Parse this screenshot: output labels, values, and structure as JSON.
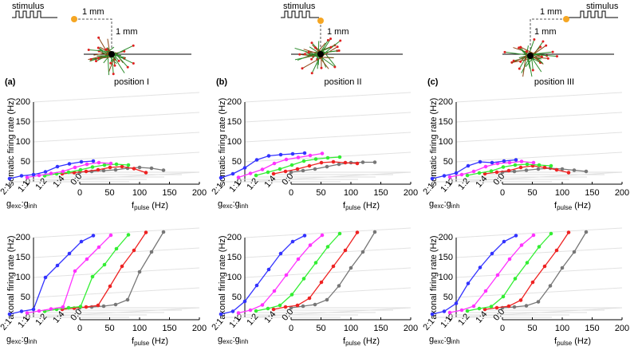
{
  "diagrams": [
    {
      "stimulus": "stimulus",
      "distance_h": "1 mm",
      "distance_v": "1 mm"
    },
    {
      "stimulus": "stimulus",
      "distance_v": "1 mm"
    },
    {
      "stimulus": "stimulus",
      "distance_h": "1 mm",
      "distance_v": "1 mm"
    }
  ],
  "panels": [
    {
      "label": "(a)",
      "title": "position I"
    },
    {
      "label": "(b)",
      "title": "position II"
    },
    {
      "label": "(c)",
      "title": "position III"
    }
  ],
  "chart_data": [
    {
      "type": "line",
      "ylabel": "somatic firing rate (Hz)",
      "xlabel": [
        "f",
        "pulse",
        " (Hz)"
      ],
      "zlabel": [
        "g",
        "exc",
        ":g",
        "inh"
      ],
      "zcategories": [
        "2:1",
        "1:1",
        "1:2",
        "1:4",
        "0:0"
      ],
      "x": [
        0,
        20,
        40,
        60,
        80,
        100,
        120,
        140
      ],
      "xlim": [
        0,
        200
      ],
      "xticks": [
        0,
        50,
        100,
        150,
        200
      ],
      "ylim": [
        0,
        200
      ],
      "yticks": [
        0,
        50,
        100,
        150,
        200
      ],
      "series": [
        {
          "color": "#3333ff",
          "values": [
            8,
            15,
            18,
            25,
            38,
            45,
            50,
            52
          ]
        },
        {
          "color": "#ff33ff",
          "values": [
            5,
            10,
            15,
            20,
            30,
            38,
            42,
            40
          ]
        },
        {
          "color": "#33ee33",
          "values": [
            3,
            8,
            12,
            18,
            25,
            30,
            32,
            30
          ]
        },
        {
          "color": "#ee2222",
          "values": [
            2,
            5,
            8,
            12,
            18,
            20,
            15,
            5
          ]
        },
        {
          "color": "#777777",
          "values": [
            0,
            2,
            4,
            6,
            10,
            12,
            10,
            5
          ]
        }
      ]
    },
    {
      "type": "line",
      "ylabel": "somatic firing rate (Hz)",
      "xlabel": [
        "f",
        "pulse",
        " (Hz)"
      ],
      "zlabel": [
        "g",
        "exc",
        ":g",
        "inh"
      ],
      "zcategories": [
        "2:1",
        "1:1",
        "1:2",
        "1:4",
        "0:0"
      ],
      "x": [
        0,
        20,
        40,
        60,
        80,
        100,
        120,
        140
      ],
      "xlim": [
        0,
        200
      ],
      "xticks": [
        0,
        50,
        100,
        150,
        200
      ],
      "ylim": [
        0,
        200
      ],
      "yticks": [
        0,
        50,
        100,
        150,
        200
      ],
      "series": [
        {
          "color": "#3333ff",
          "values": [
            10,
            20,
            35,
            55,
            65,
            68,
            70,
            72
          ]
        },
        {
          "color": "#ff33ff",
          "values": [
            5,
            15,
            25,
            40,
            50,
            55,
            60,
            65
          ]
        },
        {
          "color": "#33ee33",
          "values": [
            4,
            12,
            20,
            30,
            40,
            45,
            48,
            50
          ]
        },
        {
          "color": "#ee2222",
          "values": [
            2,
            8,
            14,
            22,
            30,
            32,
            30,
            28
          ]
        },
        {
          "color": "#777777",
          "values": [
            0,
            4,
            8,
            14,
            20,
            24,
            25,
            25
          ]
        }
      ]
    },
    {
      "type": "line",
      "ylabel": "somatic firing rate (Hz)",
      "xlabel": [
        "f",
        "pulse",
        " (Hz)"
      ],
      "zlabel": [
        "g",
        "exc",
        ":g",
        "inh"
      ],
      "zcategories": [
        "2:1",
        "1:1",
        "1:2",
        "1:4",
        "0:0"
      ],
      "x": [
        0,
        20,
        40,
        60,
        80,
        100,
        120,
        140
      ],
      "xlim": [
        0,
        200
      ],
      "xticks": [
        0,
        50,
        100,
        150,
        200
      ],
      "ylim": [
        0,
        200
      ],
      "yticks": [
        0,
        50,
        100,
        150,
        200
      ],
      "series": [
        {
          "color": "#3333ff",
          "values": [
            8,
            15,
            22,
            40,
            50,
            48,
            52,
            55
          ]
        },
        {
          "color": "#ff33ff",
          "values": [
            6,
            12,
            20,
            32,
            40,
            42,
            45,
            42
          ]
        },
        {
          "color": "#33ee33",
          "values": [
            4,
            10,
            15,
            25,
            30,
            32,
            30,
            28
          ]
        },
        {
          "color": "#ee2222",
          "values": [
            2,
            6,
            10,
            18,
            22,
            18,
            12,
            5
          ]
        },
        {
          "color": "#777777",
          "values": [
            0,
            2,
            5,
            8,
            10,
            8,
            5,
            2
          ]
        }
      ]
    },
    {
      "type": "line",
      "ylabel": "axonal firing rate (Hz)",
      "xlabel": [
        "f",
        "pulse",
        " (Hz)"
      ],
      "zlabel": [
        "g",
        "exc",
        ":g",
        "inh"
      ],
      "zcategories": [
        "2:1",
        "1:1",
        "1:2",
        "1:4",
        "0:0"
      ],
      "x": [
        0,
        20,
        40,
        60,
        80,
        100,
        120,
        140
      ],
      "xlim": [
        0,
        200
      ],
      "xticks": [
        0,
        50,
        100,
        150,
        200
      ],
      "ylim": [
        0,
        200
      ],
      "yticks": [
        0,
        50,
        100,
        150,
        200
      ],
      "series": [
        {
          "color": "#3333ff",
          "values": [
            8,
            15,
            20,
            100,
            130,
            160,
            190,
            205
          ]
        },
        {
          "color": "#ff33ff",
          "values": [
            5,
            10,
            15,
            20,
            110,
            140,
            170,
            200
          ]
        },
        {
          "color": "#33ee33",
          "values": [
            3,
            8,
            12,
            15,
            90,
            120,
            160,
            195
          ]
        },
        {
          "color": "#ee2222",
          "values": [
            2,
            5,
            8,
            12,
            60,
            110,
            150,
            195
          ]
        },
        {
          "color": "#777777",
          "values": [
            0,
            2,
            4,
            8,
            20,
            90,
            140,
            190
          ]
        }
      ]
    },
    {
      "type": "line",
      "ylabel": "axonal firing rate (Hz)",
      "xlabel": [
        "f",
        "pulse",
        " (Hz)"
      ],
      "zlabel": [
        "g",
        "exc",
        ":g",
        "inh"
      ],
      "zcategories": [
        "2:1",
        "1:1",
        "1:2",
        "1:4",
        "0:0"
      ],
      "x": [
        0,
        20,
        40,
        60,
        80,
        100,
        120,
        140
      ],
      "xlim": [
        0,
        200
      ],
      "xticks": [
        0,
        50,
        100,
        150,
        200
      ],
      "ylim": [
        0,
        200
      ],
      "yticks": [
        0,
        50,
        100,
        150,
        200
      ],
      "series": [
        {
          "color": "#3333ff",
          "values": [
            8,
            15,
            40,
            80,
            120,
            160,
            190,
            205
          ]
        },
        {
          "color": "#ff33ff",
          "values": [
            5,
            12,
            25,
            60,
            100,
            140,
            175,
            200
          ]
        },
        {
          "color": "#33ee33",
          "values": [
            4,
            10,
            18,
            45,
            85,
            125,
            165,
            198
          ]
        },
        {
          "color": "#ee2222",
          "values": [
            2,
            8,
            12,
            30,
            70,
            110,
            150,
            195
          ]
        },
        {
          "color": "#777777",
          "values": [
            0,
            4,
            8,
            20,
            55,
            100,
            140,
            190
          ]
        }
      ]
    },
    {
      "type": "line",
      "ylabel": "axonal firing rate (Hz)",
      "xlabel": [
        "f",
        "pulse",
        " (Hz)"
      ],
      "zlabel": [
        "g",
        "exc",
        ":g",
        "inh"
      ],
      "zcategories": [
        "2:1",
        "1:1",
        "1:2",
        "1:4",
        "0:0"
      ],
      "x": [
        0,
        20,
        40,
        60,
        80,
        100,
        120,
        140
      ],
      "xlim": [
        0,
        200
      ],
      "xticks": [
        0,
        50,
        100,
        150,
        200
      ],
      "ylim": [
        0,
        200
      ],
      "yticks": [
        0,
        50,
        100,
        150,
        200
      ],
      "series": [
        {
          "color": "#3333ff",
          "values": [
            8,
            15,
            35,
            85,
            125,
            160,
            190,
            205
          ]
        },
        {
          "color": "#ff33ff",
          "values": [
            6,
            12,
            22,
            60,
            100,
            140,
            175,
            200
          ]
        },
        {
          "color": "#33ee33",
          "values": [
            4,
            10,
            15,
            40,
            85,
            125,
            165,
            198
          ]
        },
        {
          "color": "#ee2222",
          "values": [
            2,
            6,
            10,
            25,
            70,
            110,
            150,
            195
          ]
        },
        {
          "color": "#777777",
          "values": [
            0,
            2,
            5,
            15,
            55,
            100,
            140,
            190
          ]
        }
      ]
    }
  ]
}
